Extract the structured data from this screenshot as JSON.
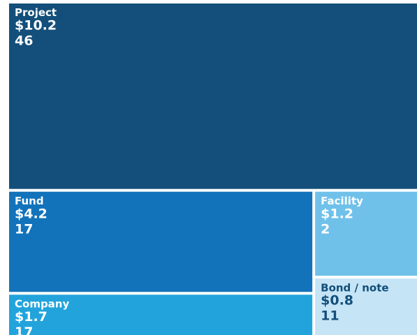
{
  "chart_data": {
    "type": "treemap",
    "categories": [
      "Project",
      "Fund",
      "Facility",
      "Company",
      "Bond / note"
    ],
    "values": [
      10.2,
      4.2,
      1.2,
      1.7,
      0.8
    ],
    "value_labels": [
      "$10.2",
      "$4.2",
      "$1.2",
      "$1.7",
      "$0.8"
    ],
    "counts": [
      46,
      17,
      2,
      17,
      11
    ],
    "colors": [
      "#134f7a",
      "#1273bb",
      "#6fc1ea",
      "#22a3db",
      "#c5e4f5"
    ],
    "text_colors": [
      "#ffffff",
      "#ffffff",
      "#ffffff",
      "#ffffff",
      "#134f7a"
    ]
  }
}
